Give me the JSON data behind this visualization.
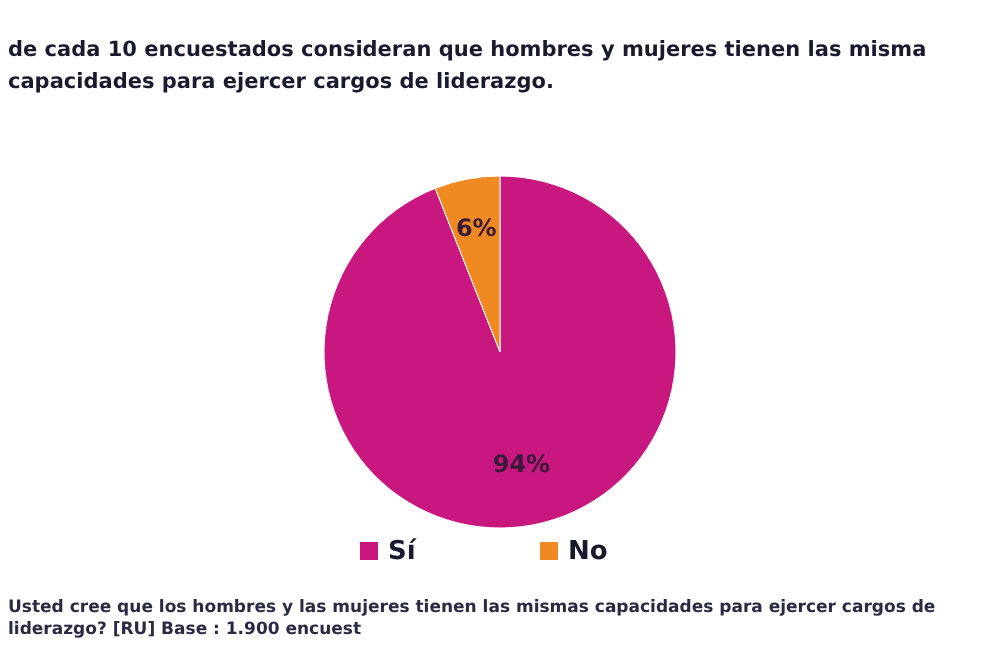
{
  "chart_data": {
    "type": "pie",
    "title": "de cada 10 encuestados consideran que hombres y mujeres tienen las misma\ncapacidades para ejercer cargos de liderazgo.",
    "categories": [
      "Sí",
      "No"
    ],
    "values": [
      94,
      6
    ],
    "colors": [
      "#c8187f",
      "#ef8a22"
    ],
    "value_labels": [
      "94%",
      "6%"
    ],
    "legend": "bottom",
    "annotations": [
      "Usted cree que los hombres y las mujeres tienen las mismas capacidades para ejercer cargos de liderazgo? [RU] Base : 1.900 encuest"
    ]
  }
}
